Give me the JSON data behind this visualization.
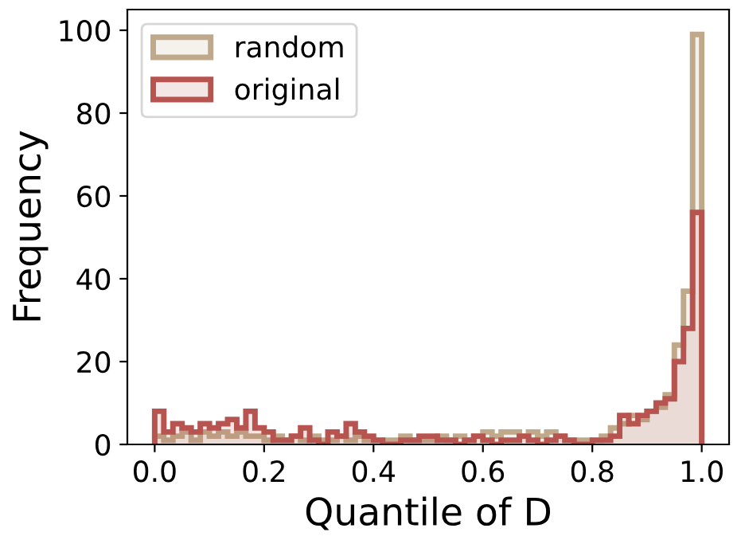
{
  "chart_data": {
    "type": "histogram",
    "xlabel": "Quantile of D",
    "ylabel": "Frequency",
    "bins": [
      0,
      0.016667,
      0.033333,
      0.05,
      0.066667,
      0.083333,
      0.1,
      0.116667,
      0.133333,
      0.15,
      0.166667,
      0.183333,
      0.2,
      0.216667,
      0.233333,
      0.25,
      0.266667,
      0.283333,
      0.3,
      0.316667,
      0.333333,
      0.35,
      0.366667,
      0.383333,
      0.4,
      0.416667,
      0.433333,
      0.45,
      0.466667,
      0.483333,
      0.5,
      0.516667,
      0.533333,
      0.55,
      0.566667,
      0.583333,
      0.6,
      0.616667,
      0.633333,
      0.65,
      0.666667,
      0.683333,
      0.7,
      0.716667,
      0.733333,
      0.75,
      0.766667,
      0.783333,
      0.8,
      0.816667,
      0.833333,
      0.85,
      0.866667,
      0.883333,
      0.9,
      0.916667,
      0.933333,
      0.95,
      0.966667,
      0.983333,
      1
    ],
    "series": [
      {
        "name": "random",
        "color": "#bfa98a",
        "values": [
          2,
          1,
          2,
          3,
          1,
          3,
          2,
          3,
          2,
          3,
          2,
          2,
          1,
          2,
          1,
          2,
          1,
          2,
          1,
          1,
          2,
          1,
          2,
          1,
          1,
          1,
          1,
          2,
          1,
          1,
          1,
          2,
          1,
          2,
          1,
          2,
          3,
          2,
          3,
          3,
          2,
          3,
          2,
          3,
          2,
          1,
          1,
          1,
          1,
          2,
          4,
          5,
          7,
          6,
          8,
          9,
          12,
          24,
          37,
          99
        ]
      },
      {
        "name": "original",
        "color": "#b85450",
        "values": [
          8,
          3,
          5,
          4,
          3,
          5,
          4,
          5,
          6,
          4,
          8,
          4,
          3,
          1,
          1,
          2,
          4,
          1,
          0,
          3,
          2,
          5,
          3,
          2,
          1,
          0,
          0,
          1,
          1,
          2,
          2,
          1,
          1,
          0,
          1,
          2,
          1,
          0,
          1,
          1,
          2,
          1,
          0,
          1,
          2,
          1,
          0,
          0,
          1,
          1,
          2,
          7,
          5,
          7,
          8,
          10,
          11,
          20,
          28,
          56
        ]
      }
    ],
    "xlim": [
      -0.05,
      1.05
    ],
    "xticks": [
      {
        "value": 0,
        "label": "0.0"
      },
      0.2,
      0.4,
      0.6,
      0.8,
      {
        "value": 1,
        "label": "1.0"
      }
    ],
    "ylim": [
      0,
      105
    ],
    "yticks": [
      0,
      20,
      40,
      60,
      80,
      100
    ],
    "legend": "top left",
    "grid": false
  }
}
